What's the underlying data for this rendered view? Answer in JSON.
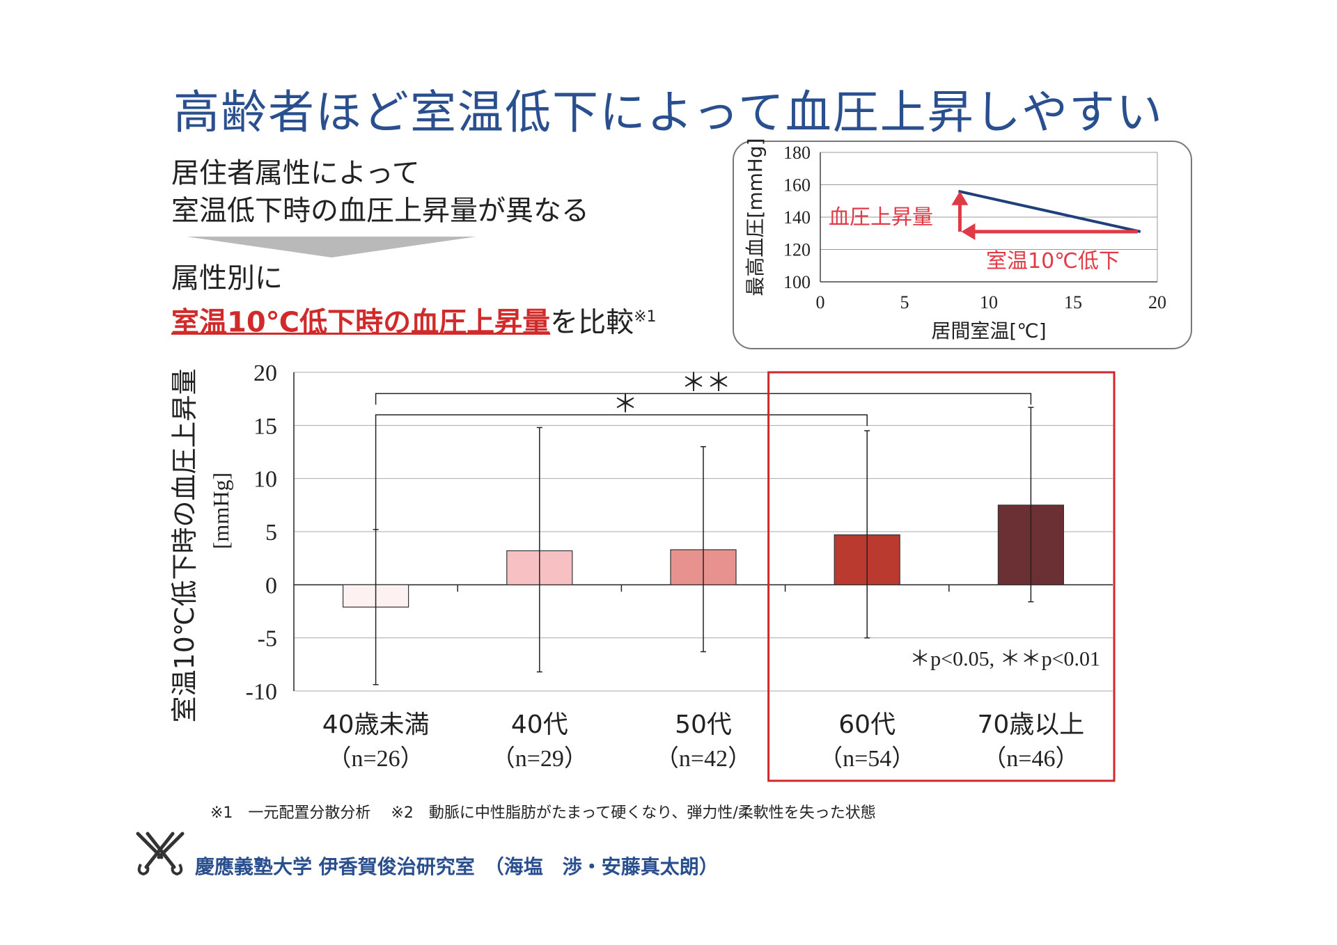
{
  "page": {
    "title": "高齢者ほど室温低下によって血圧上昇しやすい",
    "intro_line1": "居住者属性によって",
    "intro_line2": "室温低下時の血圧上昇量が異なる",
    "compare_line1": "属性別に",
    "compare_highlight": "室温10℃低下時の血圧上昇量",
    "compare_suffix": "を比較",
    "compare_note_mark": "※1",
    "footnote": "※1　一元配置分散分析　 ※2　動脈に中性脂肪がたまって硬くなり、弾力性/柔軟性を失った状態",
    "footer": "慶應義塾大学 伊香賀俊治研究室　（海塩　渉・安藤真太朗）",
    "accent_color": "#2a4f8f",
    "highlight_color": "#d12a2a"
  },
  "chart_data": [
    {
      "type": "line",
      "xlabel": "居間室温[℃]",
      "ylabel": "最高血圧[mmHg]",
      "xlim": [
        0,
        20
      ],
      "ylim": [
        100,
        180
      ],
      "xticks": [
        0,
        5,
        10,
        15,
        20
      ],
      "yticks": [
        100,
        120,
        140,
        160,
        180
      ],
      "grid": true,
      "series": [
        {
          "x": [
            8.2,
            19
          ],
          "y": [
            156,
            131
          ],
          "color": "#1f3f7a"
        }
      ],
      "annotations": [
        {
          "text": "血圧上昇量",
          "color": "#e03a46"
        },
        {
          "text": "室温10℃低下",
          "color": "#e03a46"
        }
      ]
    },
    {
      "type": "bar",
      "ylabel": "室温10℃低下時の血圧上昇量",
      "ylabel_unit": "[mmHg]",
      "ylim": [
        -10,
        20
      ],
      "yticks": [
        -10,
        -5,
        0,
        5,
        10,
        15,
        20
      ],
      "grid": true,
      "categories": [
        "40歳未満",
        "40代",
        "50代",
        "60代",
        "70歳以上"
      ],
      "sample_sizes": [
        "（n=26）",
        "（n=29）",
        "（n=42）",
        "（n=54）",
        "（n=46）"
      ],
      "values": [
        -2.1,
        3.2,
        3.3,
        4.7,
        7.5
      ],
      "error_low": [
        -9.4,
        -8.2,
        -6.3,
        -5.0,
        -1.6
      ],
      "error_high": [
        5.2,
        14.8,
        13.0,
        14.5,
        16.7
      ],
      "bar_colors": [
        "#fdf1f2",
        "#f7c1c3",
        "#e7928f",
        "#ba3a2f",
        "#6a3033"
      ],
      "significance": [
        {
          "from": 0,
          "to": 3,
          "label": "＊"
        },
        {
          "from": 0,
          "to": 4,
          "label": "＊＊"
        }
      ],
      "significance_legend": "＊p<0.05, ＊＊p<0.01",
      "highlight_categories": [
        3,
        4
      ],
      "highlight_color": "#d0272d"
    }
  ]
}
